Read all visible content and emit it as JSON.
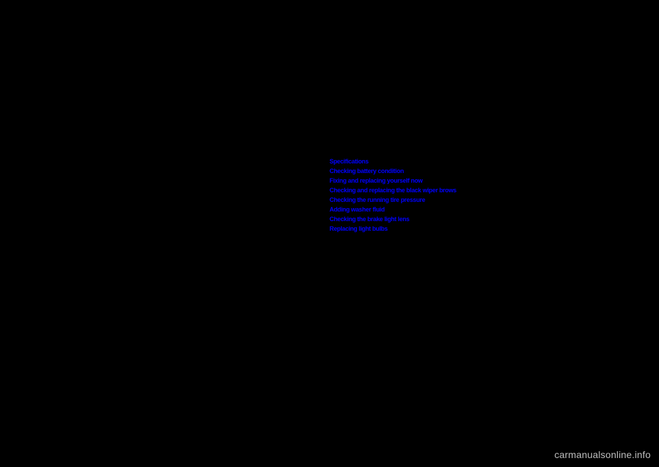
{
  "links": {
    "items": [
      "Specifications",
      "Checking battery condition",
      "Fixing and replacing yourself now",
      "Checking and replacing the black wiper brows",
      "Checking the running tire pressure",
      "Adding washer fluid",
      "Checking the brake light lens",
      "Replacing light bulbs"
    ]
  },
  "watermark": {
    "text": "carmanualsonline.info"
  }
}
